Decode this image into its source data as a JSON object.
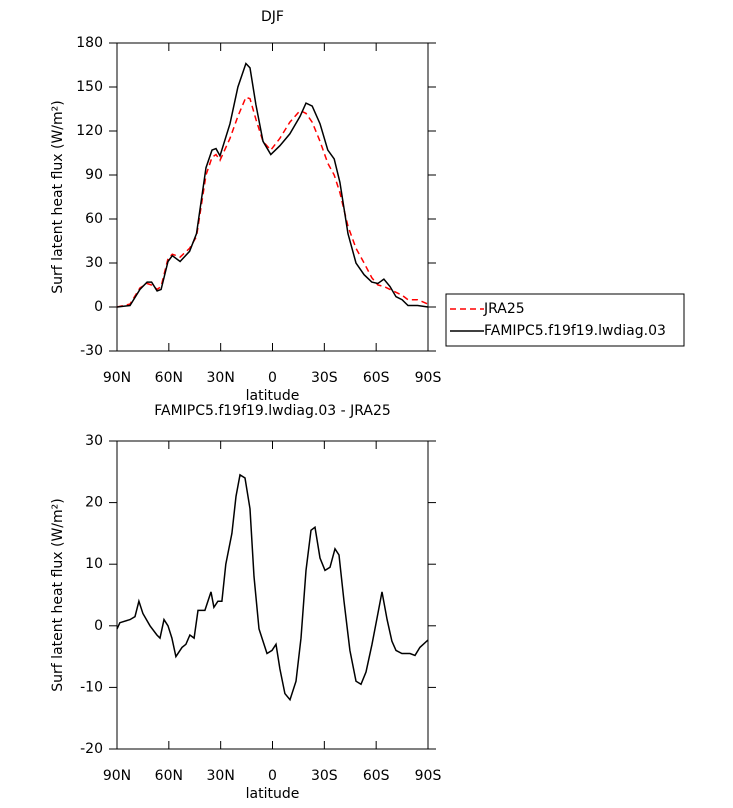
{
  "chart_data": [
    {
      "type": "line",
      "title": "DJF",
      "xlabel": "latitude",
      "ylabel": "Surf latent heat flux (W/m²)",
      "x": [
        90,
        82.5,
        76.7,
        72.6,
        70,
        66.8,
        64.5,
        60.5,
        58,
        53.5,
        48,
        44,
        38.5,
        35,
        32.7,
        30.4,
        24.6,
        20,
        15.4,
        13,
        9.6,
        5.5,
        1,
        -4.3,
        -10,
        -16,
        -19.4,
        -23,
        -27.5,
        -32,
        -35.7,
        -39,
        -43.7,
        -48.3,
        -53,
        -57.5,
        -61,
        -64.5,
        -68,
        -71.5,
        -75,
        -78.4,
        -84,
        -90
      ],
      "series": [
        {
          "name": "JRA25",
          "color": "#ff0000",
          "linestyle": "dashed",
          "values": [
            0,
            2,
            13,
            16,
            15,
            12,
            14,
            33,
            36,
            34,
            40,
            48,
            90,
            102,
            104,
            100,
            115,
            130,
            143,
            142,
            128,
            113,
            107,
            115,
            126,
            134,
            132,
            126,
            113,
            98,
            90,
            78,
            55,
            40,
            30,
            20,
            15,
            14,
            12,
            10,
            8,
            5,
            5,
            2
          ]
        },
        {
          "name": "FAMIPC5.f19f19.lwdiag.03",
          "color": "#000000",
          "linestyle": "solid",
          "values": [
            0,
            1,
            12,
            17,
            17,
            11,
            12,
            31,
            35,
            31,
            38,
            50,
            95,
            107,
            108,
            103,
            125,
            150,
            166,
            163,
            138,
            113,
            104,
            110,
            118,
            130,
            139,
            137,
            125,
            107,
            101,
            85,
            50,
            30,
            22,
            17,
            16,
            19,
            14,
            7,
            5,
            1,
            1,
            0
          ]
        }
      ],
      "xlim": [
        90,
        -90
      ],
      "ylim": [
        -30,
        180
      ],
      "xticks": [
        {
          "value": 90,
          "label": "90N"
        },
        {
          "value": 60,
          "label": "60N"
        },
        {
          "value": 30,
          "label": "30N"
        },
        0,
        {
          "value": -30,
          "label": "30S"
        },
        {
          "value": -60,
          "label": "60S"
        },
        {
          "value": -90,
          "label": "90S"
        }
      ],
      "yticks": [
        -30,
        0,
        30,
        60,
        90,
        120,
        150,
        180
      ]
    },
    {
      "type": "line",
      "title": "FAMIPC5.f19f19.lwdiag.03 - JRA25",
      "xlabel": "latitude",
      "ylabel": "Surf latent heat flux (W/m²)",
      "x": [
        90,
        88.3,
        82.5,
        79.6,
        77.3,
        75,
        70.9,
        66.9,
        65.1,
        62.8,
        60.5,
        58.2,
        55.9,
        52.4,
        50.1,
        47.8,
        45.4,
        43.1,
        39.1,
        35.6,
        33.9,
        31.6,
        29.3,
        27,
        23.5,
        21.1,
        18.8,
        15.9,
        13,
        10.7,
        7.8,
        3.2,
        0.3,
        -2,
        -4.3,
        -7.2,
        -10.1,
        -13.6,
        -16.5,
        -19.4,
        -22.3,
        -24.6,
        -27.5,
        -30.4,
        -33.3,
        -36.2,
        -38.5,
        -41.4,
        -44.8,
        -48.3,
        -51.2,
        -54.1,
        -57.6,
        -61,
        -63.4,
        -66.3,
        -69.1,
        -71.5,
        -74.9,
        -79.6,
        -82.5,
        -85.3,
        -90
      ],
      "series": [
        {
          "name": "FAMIPC5.f19f19.lwdiag.03 - JRA25",
          "color": "#000000",
          "linestyle": "solid",
          "values": [
            -0.5,
            0.5,
            1,
            1.5,
            4,
            2,
            0,
            -1.5,
            -2,
            1,
            0,
            -2,
            -5,
            -3.5,
            -3,
            -1.5,
            -2,
            2.5,
            2.5,
            5.5,
            3,
            4,
            4,
            10,
            15,
            21,
            24.5,
            24,
            19,
            8,
            -0.5,
            -4.5,
            -4,
            -3,
            -7,
            -11,
            -12,
            -9,
            -2,
            9,
            15.5,
            16,
            11,
            9,
            9.5,
            12.5,
            11.5,
            4,
            -4,
            -9,
            -9.5,
            -7.5,
            -3,
            2,
            5.5,
            1,
            -2.5,
            -4,
            -4.5,
            -4.5,
            -4.8,
            -3.5,
            -2.3
          ]
        }
      ],
      "xlim": [
        90,
        -90
      ],
      "ylim": [
        -20,
        30
      ],
      "xticks": [
        {
          "value": 90,
          "label": "90N"
        },
        {
          "value": 60,
          "label": "60N"
        },
        {
          "value": 30,
          "label": "30N"
        },
        0,
        {
          "value": -30,
          "label": "30S"
        },
        {
          "value": -60,
          "label": "60S"
        },
        {
          "value": -90,
          "label": "90S"
        }
      ],
      "yticks": [
        -20,
        -10,
        0,
        10,
        20,
        30
      ]
    }
  ]
}
